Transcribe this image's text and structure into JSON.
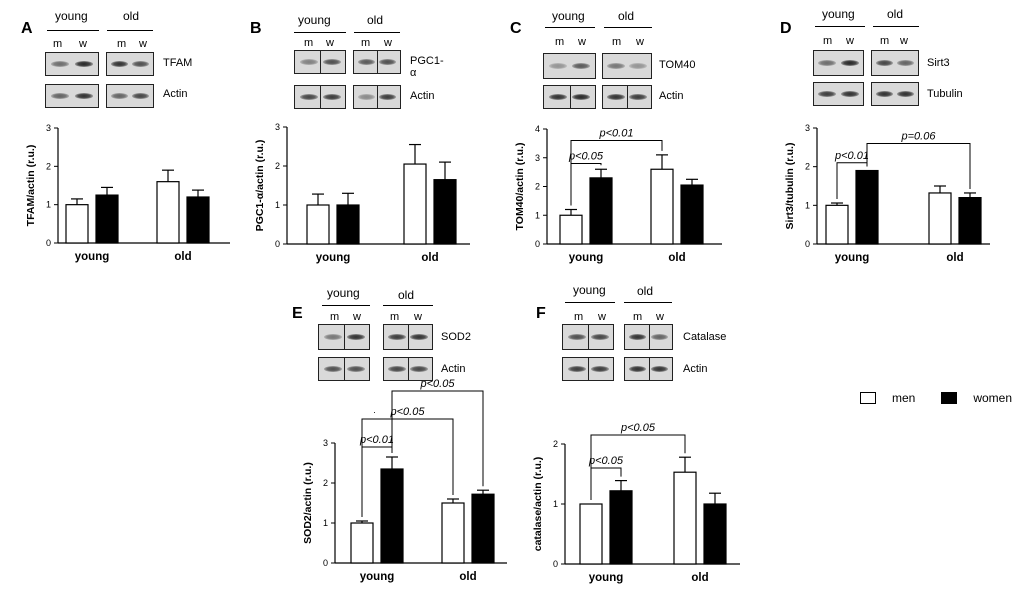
{
  "panels": [
    {
      "id": "A",
      "label": "A",
      "groups": {
        "young": "young",
        "old": "old"
      },
      "lanes": [
        "m",
        "w",
        "m",
        "w"
      ],
      "blots": [
        {
          "label": "TFAM",
          "intensities": [
            0.55,
            0.9,
            0.85,
            0.7
          ],
          "divided": false
        },
        {
          "label": "Actin",
          "intensities": [
            0.6,
            0.85,
            0.6,
            0.75
          ],
          "divided": false
        }
      ]
    },
    {
      "id": "B",
      "label": "B",
      "groups": {
        "young": "young",
        "old": "old"
      },
      "lanes": [
        "m",
        "w",
        "m",
        "w"
      ],
      "blots": [
        {
          "label": "PGC1-α",
          "intensities": [
            0.45,
            0.7,
            0.65,
            0.7
          ],
          "divided": true
        },
        {
          "label": "Actin",
          "intensities": [
            0.75,
            0.8,
            0.4,
            0.8
          ],
          "divided": true
        }
      ]
    },
    {
      "id": "C",
      "label": "C",
      "groups": {
        "young": "young",
        "old": "old"
      },
      "lanes": [
        "m",
        "w",
        "m",
        "w"
      ],
      "blots": [
        {
          "label": "TOM40",
          "intensities": [
            0.35,
            0.65,
            0.5,
            0.35
          ],
          "divided": false
        },
        {
          "label": "Actin",
          "intensities": [
            0.85,
            0.9,
            0.85,
            0.8
          ],
          "divided": true
        }
      ]
    },
    {
      "id": "D",
      "label": "D",
      "groups": {
        "young": "young",
        "old": "old"
      },
      "lanes": [
        "m",
        "w",
        "m",
        "w"
      ],
      "blots": [
        {
          "label": "Sirt3",
          "intensities": [
            0.55,
            0.9,
            0.75,
            0.6
          ],
          "divided": false
        },
        {
          "label": "Tubulin",
          "intensities": [
            0.8,
            0.85,
            0.85,
            0.85
          ],
          "divided": false
        }
      ]
    },
    {
      "id": "E",
      "label": "E",
      "groups": {
        "young": "young",
        "old": "old"
      },
      "lanes": [
        "m",
        "w",
        "m",
        "w"
      ],
      "blots": [
        {
          "label": "SOD2",
          "intensities": [
            0.5,
            0.85,
            0.8,
            0.85
          ],
          "divided": true
        },
        {
          "label": "Actin",
          "intensities": [
            0.7,
            0.7,
            0.75,
            0.75
          ],
          "divided": true
        }
      ]
    },
    {
      "id": "F",
      "label": "F",
      "groups": {
        "young": "young",
        "old": "old"
      },
      "lanes": [
        "m",
        "w",
        "m",
        "w"
      ],
      "blots": [
        {
          "label": "Catalase",
          "intensities": [
            0.7,
            0.75,
            0.85,
            0.6
          ],
          "divided": true
        },
        {
          "label": "Actin",
          "intensities": [
            0.8,
            0.8,
            0.85,
            0.85
          ],
          "divided": true
        }
      ]
    }
  ],
  "legend": {
    "men": "men",
    "women": "women"
  },
  "chart_data": [
    {
      "panel": "A",
      "type": "bar",
      "ylabel": "TFAM/actin (r.u.)",
      "categories": [
        "young",
        "old"
      ],
      "series": [
        {
          "name": "men",
          "values": [
            1.0,
            1.6
          ],
          "errors": [
            0.15,
            0.3
          ]
        },
        {
          "name": "women",
          "values": [
            1.25,
            1.2
          ],
          "errors": [
            0.2,
            0.18
          ]
        }
      ],
      "ylim": [
        0,
        3
      ],
      "yticks": [
        0,
        1,
        2,
        3
      ],
      "annotations": []
    },
    {
      "panel": "B",
      "type": "bar",
      "ylabel": "PGC1-α/actin (r.u.)",
      "categories": [
        "young",
        "old"
      ],
      "series": [
        {
          "name": "men",
          "values": [
            1.0,
            2.05
          ],
          "errors": [
            0.28,
            0.5
          ]
        },
        {
          "name": "women",
          "values": [
            1.0,
            1.65
          ],
          "errors": [
            0.3,
            0.45
          ]
        }
      ],
      "ylim": [
        0,
        3
      ],
      "yticks": [
        0,
        1,
        2,
        3
      ],
      "annotations": []
    },
    {
      "panel": "C",
      "type": "bar",
      "ylabel": "TOM40/actin (r.u.)",
      "categories": [
        "young",
        "old"
      ],
      "series": [
        {
          "name": "men",
          "values": [
            1.0,
            2.6
          ],
          "errors": [
            0.2,
            0.5
          ]
        },
        {
          "name": "women",
          "values": [
            2.3,
            2.05
          ],
          "errors": [
            0.3,
            0.2
          ]
        }
      ],
      "ylim": [
        0,
        4
      ],
      "yticks": [
        0,
        1,
        2,
        3,
        4
      ],
      "annotations": [
        {
          "text": "p<0.05",
          "from": [
            0,
            0
          ],
          "to": [
            0,
            1
          ],
          "level": 2.8
        },
        {
          "text": "p<0.01",
          "from": [
            0,
            0
          ],
          "to": [
            1,
            0
          ],
          "level": 3.6
        }
      ]
    },
    {
      "panel": "D",
      "type": "bar",
      "ylabel": "Sirt3/tubulin (r.u.)",
      "categories": [
        "young",
        "old"
      ],
      "series": [
        {
          "name": "men",
          "values": [
            1.0,
            1.32
          ],
          "errors": [
            0.06,
            0.18
          ]
        },
        {
          "name": "women",
          "values": [
            1.9,
            1.2
          ],
          "errors": [
            0.0,
            0.12
          ]
        }
      ],
      "ylim": [
        0,
        3
      ],
      "yticks": [
        0,
        1,
        2,
        3
      ],
      "annotations": [
        {
          "text": "p<0.01",
          "from": [
            0,
            0
          ],
          "to": [
            0,
            1
          ],
          "level": 2.1
        },
        {
          "text": "p=0.06",
          "from": [
            0,
            1
          ],
          "to": [
            1,
            1
          ],
          "level": 2.6
        }
      ]
    },
    {
      "panel": "E",
      "type": "bar",
      "ylabel": "SOD2/actin (r.u.)",
      "categories": [
        "young",
        "old"
      ],
      "series": [
        {
          "name": "men",
          "values": [
            1.0,
            1.5
          ],
          "errors": [
            0.05,
            0.1
          ]
        },
        {
          "name": "women",
          "values": [
            2.35,
            1.72
          ],
          "errors": [
            0.3,
            0.1
          ]
        }
      ],
      "ylim": [
        0,
        3
      ],
      "yticks": [
        0,
        1,
        2,
        3
      ],
      "annotations": [
        {
          "text": "p<0.01",
          "from": [
            0,
            0
          ],
          "to": [
            0,
            1
          ],
          "level": 2.9
        },
        {
          "text": "p<0.05",
          "from": [
            0,
            0
          ],
          "to": [
            1,
            0
          ],
          "level": 3.6
        },
        {
          "text": "p<0.05",
          "from": [
            0,
            1
          ],
          "to": [
            1,
            1
          ],
          "level": 4.3
        }
      ]
    },
    {
      "panel": "F",
      "type": "bar",
      "ylabel": "catalase/actin (r.u.)",
      "categories": [
        "young",
        "old"
      ],
      "series": [
        {
          "name": "men",
          "values": [
            1.0,
            1.53
          ],
          "errors": [
            0.0,
            0.25
          ]
        },
        {
          "name": "women",
          "values": [
            1.22,
            1.0
          ],
          "errors": [
            0.17,
            0.18
          ]
        }
      ],
      "ylim": [
        0,
        2
      ],
      "yticks": [
        0,
        1,
        2
      ],
      "annotations": [
        {
          "text": "p<0.05",
          "from": [
            0,
            0
          ],
          "to": [
            0,
            1
          ],
          "level": 1.6
        },
        {
          "text": "p<0.05",
          "from": [
            0,
            0
          ],
          "to": [
            1,
            0
          ],
          "level": 2.15
        }
      ]
    }
  ]
}
